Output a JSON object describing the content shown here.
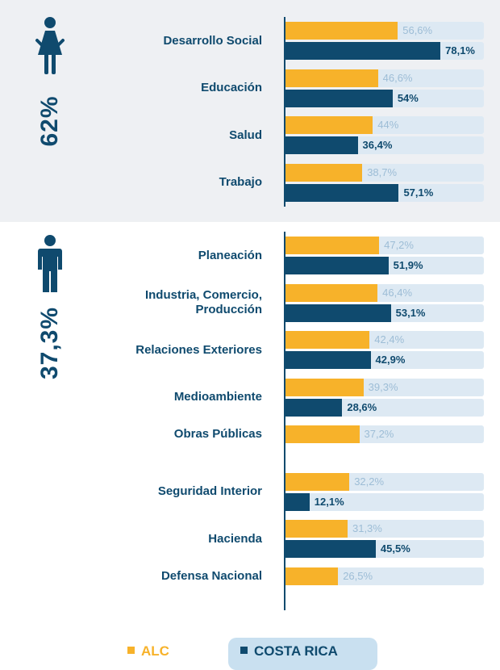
{
  "chart_data": [
    {
      "type": "bar",
      "orientation": "horizontal",
      "panel_label": "62%",
      "categories": [
        "Desarrollo Social",
        "Educación",
        "Salud",
        "Trabajo"
      ],
      "xlim": [
        0,
        100
      ],
      "series": [
        {
          "name": "ALC",
          "color": "#f7b22a",
          "values": [
            56.6,
            46.6,
            44,
            38.7
          ],
          "value_labels": [
            "56,6%",
            "46,6%",
            "44%",
            "38,7%"
          ]
        },
        {
          "name": "COSTA RICA",
          "color": "#0f4a6e",
          "values": [
            78.1,
            54,
            36.4,
            57.1
          ],
          "value_labels": [
            "78,1%",
            "54%",
            "36,4%",
            "57,1%"
          ]
        }
      ]
    },
    {
      "type": "bar",
      "orientation": "horizontal",
      "panel_label": "37,3%",
      "categories": [
        "Planeación",
        "Industria, Comercio, Producción",
        "Relaciones Exteriores",
        "Medioambiente",
        "Obras Públicas",
        "Seguridad Interior",
        "Hacienda",
        "Defensa Nacional"
      ],
      "xlim": [
        0,
        100
      ],
      "series": [
        {
          "color": "#f7b22a",
          "values": [
            47.2,
            46.4,
            42.4,
            39.3,
            37.2,
            32.2,
            31.3,
            26.5
          ],
          "value_labels": [
            "47,2%",
            "46,4%",
            "42,4%",
            "39,3%",
            "37,2%",
            "32,2%",
            "31,3%",
            "26,5%"
          ]
        },
        {
          "color": "#0f4a6e",
          "values": [
            51.9,
            53.1,
            42.9,
            28.6,
            null,
            12.1,
            45.5,
            null
          ],
          "value_labels": [
            "51,9%",
            "53,1%",
            "42,9%",
            "28,6%",
            null,
            "12,1%",
            "45,5%",
            null
          ]
        }
      ]
    }
  ]
}
